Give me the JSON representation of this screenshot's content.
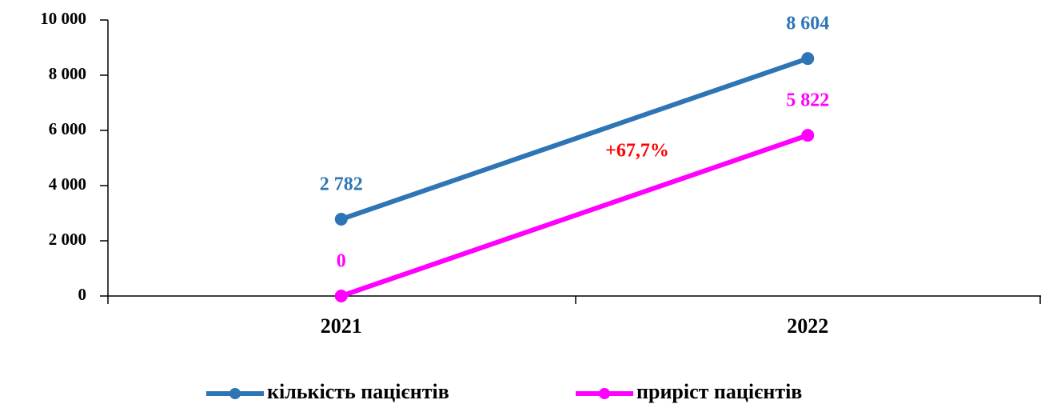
{
  "chart_data": {
    "type": "line",
    "categories": [
      "2021",
      "2022"
    ],
    "series": [
      {
        "name": "кількість пацієнтів",
        "color": "#2e75b6",
        "values": [
          2782,
          8604
        ],
        "value_labels": [
          "2 782",
          "8 604"
        ]
      },
      {
        "name": "приріст пацієнтів",
        "color": "#ff00ff",
        "values": [
          0,
          5822
        ],
        "value_labels": [
          "0",
          "5 822"
        ]
      }
    ],
    "annotations": [
      "+67,7%"
    ],
    "ylim": [
      0,
      10000
    ],
    "yticks": [
      {
        "value": 0,
        "label": "0"
      },
      {
        "value": 2000,
        "label": "2 000"
      },
      {
        "value": 4000,
        "label": "4 000"
      },
      {
        "value": 6000,
        "label": "6 000"
      },
      {
        "value": 8000,
        "label": "8 000"
      },
      {
        "value": 10000,
        "label": "10 000"
      }
    ],
    "grid": false,
    "legend": "bottom"
  }
}
